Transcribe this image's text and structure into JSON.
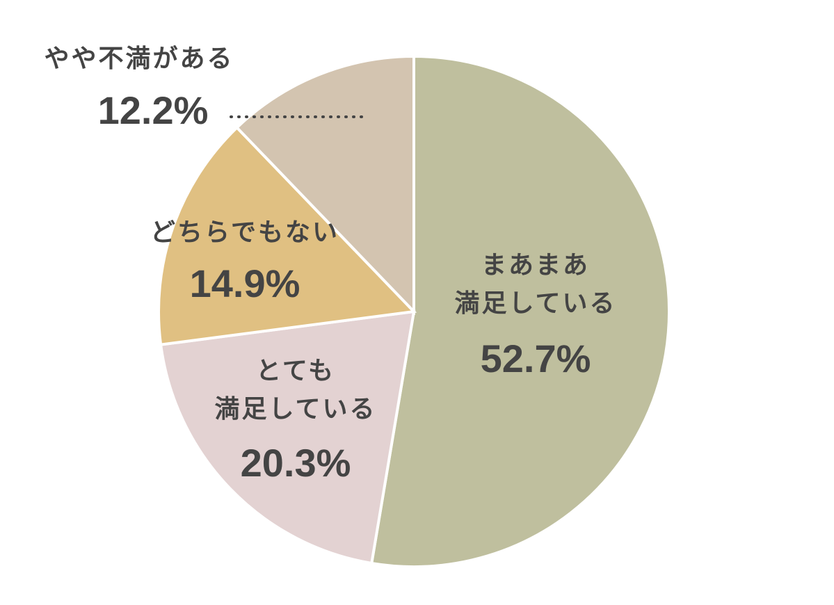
{
  "chart_data": {
    "type": "pie",
    "title": "",
    "start_angle_deg": 0,
    "direction": "clockwise",
    "slices": [
      {
        "label_lines": [
          "まあまあ",
          "満足している"
        ],
        "value": 52.7,
        "value_label": "52.7%",
        "color": "#bfbf9e"
      },
      {
        "label_lines": [
          "とても",
          "満足している"
        ],
        "value": 20.3,
        "value_label": "20.3%",
        "color": "#e3d2d2"
      },
      {
        "label_lines": [
          "どちらでもない"
        ],
        "value": 14.9,
        "value_label": "14.9%",
        "color": "#e0c082"
      },
      {
        "label_lines": [
          "やや不満がある"
        ],
        "value": 12.2,
        "value_label": "12.2%",
        "color": "#d3c4b0",
        "label_outside": true
      }
    ],
    "text_color": "#444444",
    "border_color": "#ffffff"
  }
}
